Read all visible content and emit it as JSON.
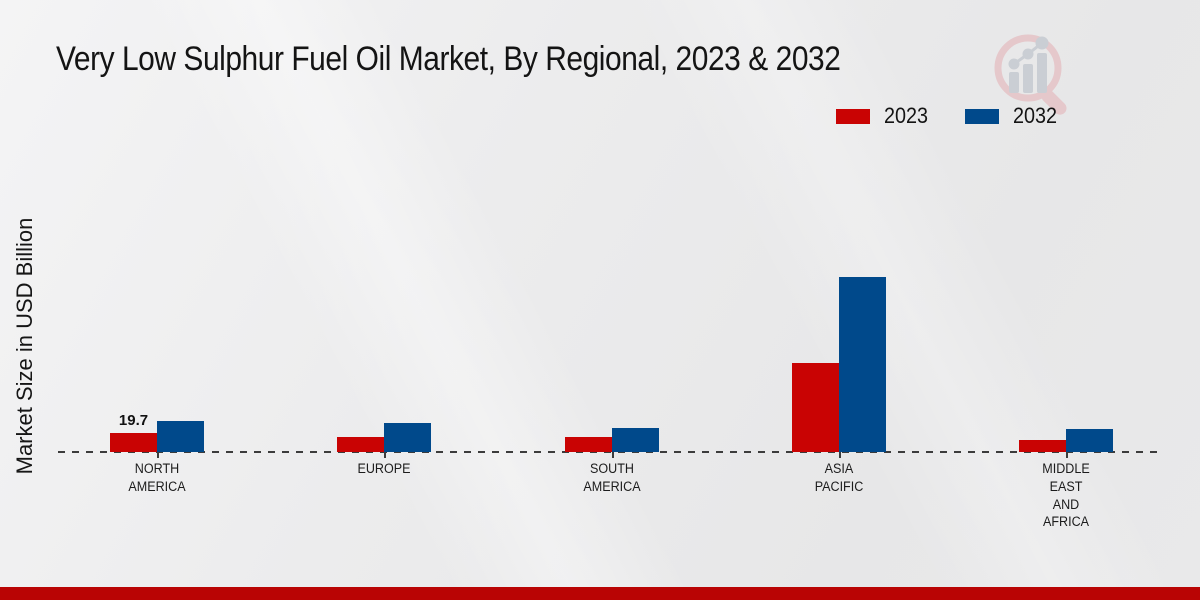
{
  "branding": {
    "bottom_bar_color": "#b90404",
    "logo_ring_color": "#e5c7ca",
    "logo_bar_color": "#c9cdd3"
  },
  "legend": {
    "items": [
      {
        "label": "2023",
        "color": "#c90303"
      },
      {
        "label": "2032",
        "color": "#00498b"
      }
    ]
  },
  "chart_data": {
    "type": "bar",
    "title": "Very Low Sulphur Fuel Oil Market, By Regional, 2023 & 2032",
    "ylabel": "Market Size in USD Billion",
    "xlabel": "",
    "categories": [
      "NORTH AMERICA",
      "EUROPE",
      "SOUTH AMERICA",
      "ASIA PACIFIC",
      "MIDDLE EAST AND AFRICA"
    ],
    "category_label_lines": [
      [
        "NORTH",
        "AMERICA"
      ],
      [
        "EUROPE"
      ],
      [
        "SOUTH",
        "AMERICA"
      ],
      [
        "ASIA",
        "PACIFIC"
      ],
      [
        "MIDDLE",
        "EAST",
        "AND",
        "AFRICA"
      ]
    ],
    "series": [
      {
        "name": "2023",
        "color": "#c90303",
        "values": [
          19.7,
          15.6,
          15.6,
          92.3,
          12.4
        ]
      },
      {
        "name": "2032",
        "color": "#00498b",
        "values": [
          32.1,
          30.1,
          24.9,
          181.2,
          23.9
        ]
      }
    ],
    "value_labels": [
      {
        "series_index": 0,
        "category_index": 0,
        "text": "19.7"
      }
    ],
    "ylim": [
      0,
      190
    ],
    "grid": false,
    "legend_position": "top-right",
    "baseline_style": "dashed",
    "y_axis_ticks_visible": false
  }
}
